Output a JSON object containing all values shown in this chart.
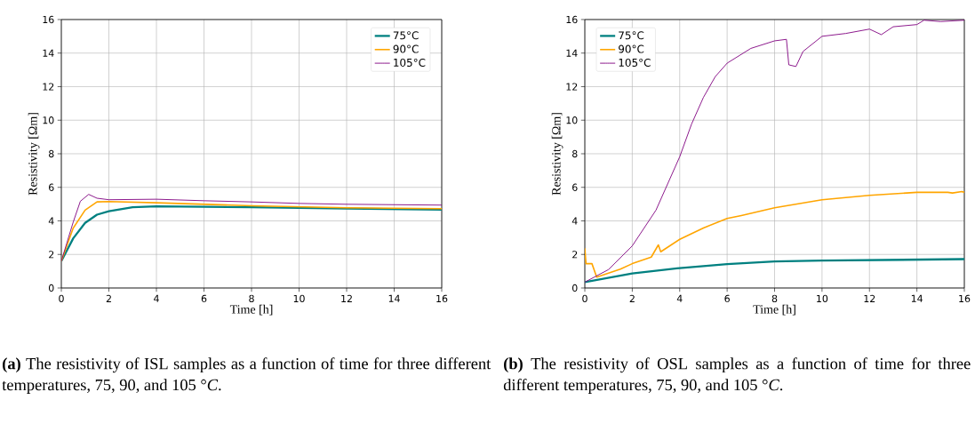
{
  "chart_data": [
    {
      "type": "line",
      "xlabel": "Time [h]",
      "ylabel": "Resistivity [Ωm]",
      "xlim": [
        0,
        16
      ],
      "ylim": [
        0,
        16
      ],
      "xticks": [
        0,
        2,
        4,
        6,
        8,
        10,
        12,
        14,
        16
      ],
      "yticks": [
        0,
        2,
        4,
        6,
        8,
        10,
        12,
        14,
        16
      ],
      "grid": true,
      "legend": "top right",
      "annotations": [
        "**(a)** The resistivity of ISL samples as a function of time for three different temperatures, 75, 90, and 105 °*C*."
      ],
      "series": [
        {
          "name": "75°C",
          "color": "#008080",
          "x": [
            0,
            0.5,
            1,
            1.5,
            2,
            3,
            4,
            8,
            12,
            16
          ],
          "values": [
            1.6,
            2.96,
            3.88,
            4.37,
            4.58,
            4.81,
            4.87,
            4.81,
            4.73,
            4.67
          ]
        },
        {
          "name": "90°C",
          "color": "#ffa500",
          "x": [
            0,
            0.5,
            1,
            1.5,
            2,
            4,
            8,
            12,
            16
          ],
          "values": [
            1.6,
            3.57,
            4.64,
            5.13,
            5.15,
            5.08,
            4.9,
            4.78,
            4.73
          ]
        },
        {
          "name": "105°C",
          "color": "#800080",
          "x": [
            0,
            0.5,
            0.8,
            1.15,
            1.5,
            2,
            4,
            6,
            8,
            10,
            12,
            16
          ],
          "values": [
            1.6,
            3.93,
            5.17,
            5.58,
            5.35,
            5.26,
            5.29,
            5.2,
            5.13,
            5.04,
            4.99,
            4.94
          ]
        }
      ]
    },
    {
      "type": "line",
      "xlabel": "Time [h]",
      "ylabel": "Resistivity [Ωm]",
      "xlim": [
        0,
        16
      ],
      "ylim": [
        0,
        16
      ],
      "xticks": [
        0,
        2,
        4,
        6,
        8,
        10,
        12,
        14,
        16
      ],
      "yticks": [
        0,
        2,
        4,
        6,
        8,
        10,
        12,
        14,
        16
      ],
      "grid": true,
      "legend": "top left",
      "annotations": [
        "**(b)** The resistivity of OSL samples as a function of time for three different temperatures, 75, 90, and 105 °*C*."
      ],
      "series": [
        {
          "name": "75°C",
          "color": "#008080",
          "x": [
            0,
            2,
            4,
            6,
            8,
            10,
            12,
            16
          ],
          "values": [
            0.35,
            0.87,
            1.19,
            1.42,
            1.58,
            1.63,
            1.66,
            1.72
          ]
        },
        {
          "name": "90°C",
          "color": "#ffa500",
          "x": [
            0,
            0.05,
            0.3,
            0.5,
            1.5,
            2,
            2.8,
            3.1,
            3.2,
            4,
            5,
            6,
            6.6,
            8,
            10,
            12,
            14,
            15.3,
            15.5,
            15.9,
            16
          ],
          "values": [
            2.37,
            1.45,
            1.45,
            0.65,
            1.13,
            1.45,
            1.84,
            2.57,
            2.16,
            2.9,
            3.58,
            4.14,
            4.32,
            4.78,
            5.26,
            5.52,
            5.7,
            5.7,
            5.66,
            5.75,
            5.7
          ]
        },
        {
          "name": "105°C",
          "color": "#800080",
          "x": [
            0,
            1,
            2,
            3,
            4,
            4.5,
            5,
            5.5,
            6,
            7,
            8,
            8.5,
            8.6,
            8.9,
            9.2,
            10,
            11,
            12,
            12.5,
            13,
            14,
            14.3,
            15,
            16
          ],
          "values": [
            0.35,
            1.1,
            2.51,
            4.64,
            7.82,
            9.77,
            11.36,
            12.6,
            13.4,
            14.28,
            14.73,
            14.82,
            13.3,
            13.2,
            14.1,
            15.0,
            15.17,
            15.43,
            15.1,
            15.57,
            15.7,
            15.96,
            15.88,
            15.96
          ]
        }
      ]
    }
  ]
}
